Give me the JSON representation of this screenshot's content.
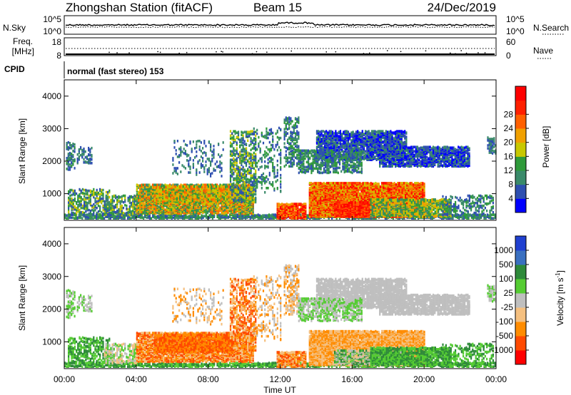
{
  "header": {
    "station": "Zhongshan Station (fitACF)",
    "beam": "Beam 15",
    "date": "24/Dec/2019"
  },
  "panels": {
    "nsky_label": "N.Sky",
    "nsearch_label": "N.Search",
    "nsky_ticks": [
      "10^5",
      "10^0"
    ],
    "nsearch_ticks": [
      "10^5",
      "10^0"
    ],
    "freq_label": "Freq.",
    "freq_unit": "[MHz]",
    "freq_ticks": [
      "18",
      "8"
    ],
    "nave_label": "Nave",
    "nave_ticks": [
      "60",
      "0"
    ],
    "cpid_label": "CPID",
    "cpid_text": "normal (fast stereo) 153"
  },
  "colors": {
    "power": [
      "#0000ff",
      "#2e4fb0",
      "#3a8a6a",
      "#2f9a3a",
      "#c8c800",
      "#f0a000",
      "#ff6000",
      "#ff2000",
      "#ff0000"
    ],
    "velocity": [
      "#ff0000",
      "#ff4a00",
      "#ff8c00",
      "#f5c080",
      "#bfbfbf",
      "#55cc33",
      "#2e8a3a",
      "#3a70c0",
      "#2040d0"
    ]
  },
  "chart_data": [
    {
      "type": "heatmap",
      "name": "Power",
      "ylabel": "Slant Range [km]",
      "ylim": [
        180,
        4500
      ],
      "yticks": [
        "1000",
        "2000",
        "3000",
        "4000"
      ],
      "xlim": [
        0,
        24
      ],
      "colorbar_label": "Power [dB]",
      "colorbar_ticks": [
        "4",
        "8",
        "12",
        "16",
        "20",
        "24",
        "28"
      ]
    },
    {
      "type": "heatmap",
      "name": "Velocity",
      "ylabel": "Slant Range [km]",
      "ylim": [
        180,
        4500
      ],
      "yticks": [
        "1000",
        "2000",
        "3000",
        "4000"
      ],
      "xlim": [
        0,
        24
      ],
      "colorbar_label": "Velocity [m s",
      "colorbar_label_sup": "-1",
      "colorbar_label_close": "]",
      "colorbar_ticks": [
        "1000",
        "500",
        "100",
        "25",
        "-25",
        "-100",
        "-500",
        "-1000"
      ]
    }
  ],
  "time_axis": {
    "xlabel": "Time UT",
    "ticks": [
      "00:00",
      "04:00",
      "08:00",
      "12:00",
      "16:00",
      "20:00",
      "00:00"
    ]
  }
}
